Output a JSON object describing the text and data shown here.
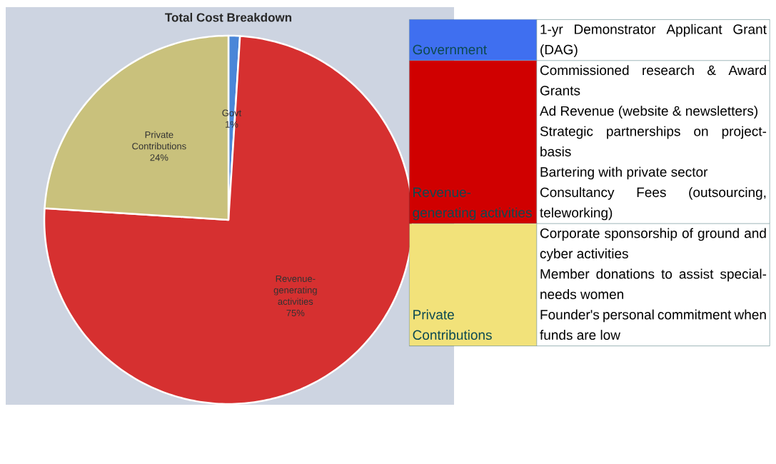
{
  "chart_data": [
    {
      "type": "pie",
      "title": "Total Cost Breakdown",
      "categories": [
        "Govt",
        "Revenue-generating activities",
        "Private Contributions"
      ],
      "values": [
        1,
        75,
        24
      ],
      "colors": [
        "#4a86d8",
        "#d63030",
        "#c9c17c"
      ],
      "value_labels": [
        "1%",
        "75%",
        "24%"
      ]
    },
    {
      "type": "other",
      "y_categories": [
        "Government",
        "Revenue-generating activities",
        "Private Contributions"
      ],
      "colors": [
        "#3f6ff0",
        "#d00000",
        "#f2e27a"
      ],
      "cell_labels": [
        [
          "1-yr Demonstrator Applicant Grant (DAG)"
        ],
        [
          "Commissioned research & Award Grants",
          "Ad Revenue (website & newsletters)",
          "Strategic partnerships on project-basis",
          "Bartering with private sector",
          "Consultancy Fees (outsourcing, teleworking)"
        ],
        [
          "Corporate sponsorship of ground and cyber activities",
          "Member donations to assist special-needs women",
          "Founder's personal commitment when funds are low"
        ]
      ]
    }
  ]
}
